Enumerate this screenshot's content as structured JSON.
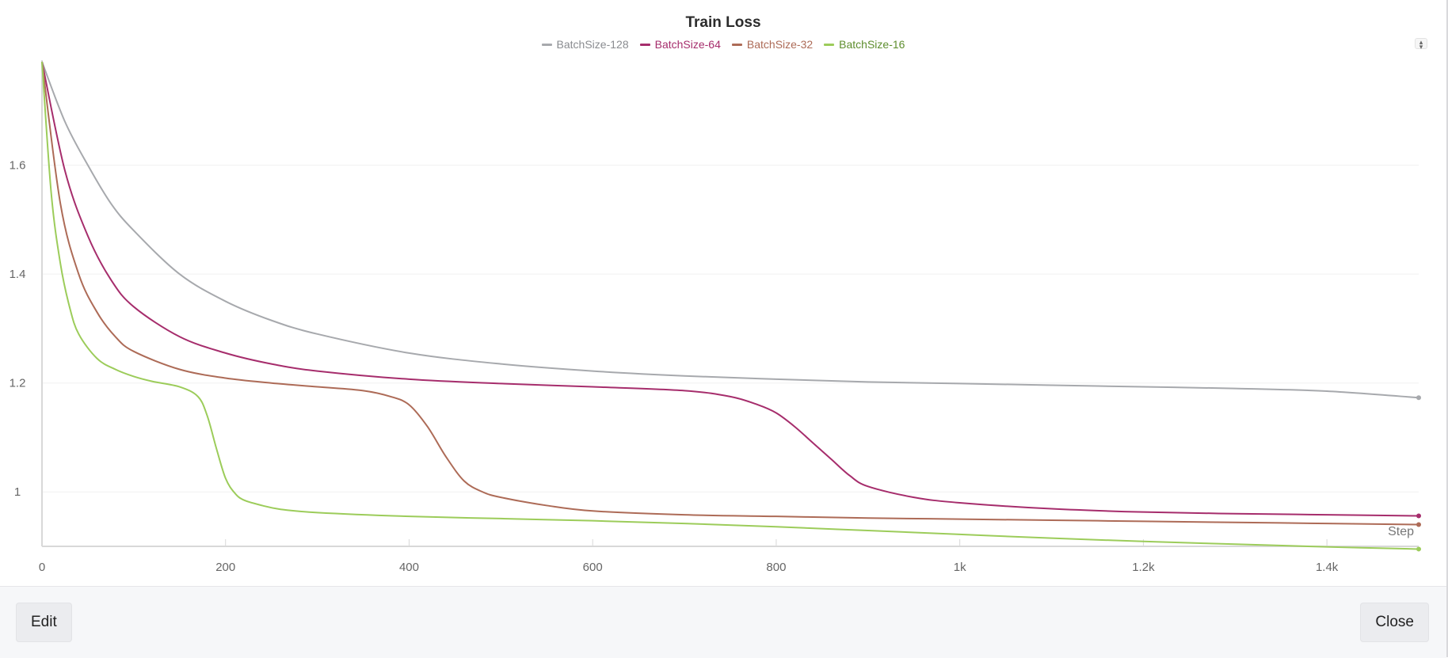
{
  "chart_data": {
    "type": "line",
    "title": "Train Loss",
    "xlabel": "Step",
    "ylabel": "",
    "xlim": [
      0,
      1500
    ],
    "ylim": [
      0.9,
      1.79
    ],
    "x_ticks": [
      0,
      200,
      400,
      600,
      800,
      1000,
      1200,
      1400
    ],
    "x_tick_labels": [
      "0",
      "200",
      "400",
      "600",
      "800",
      "1k",
      "1.2k",
      "1.4k"
    ],
    "y_ticks": [
      1,
      1.2,
      1.4,
      1.6
    ],
    "y_tick_labels": [
      "1",
      "1.2",
      "1.4",
      "1.6"
    ],
    "grid": true,
    "legend_position": "top-center",
    "series": [
      {
        "name": "BatchSize-128",
        "color": "#a7a9ad",
        "label_color": "#8a8c90",
        "x": [
          0,
          25,
          50,
          75,
          100,
          150,
          200,
          250,
          300,
          400,
          500,
          600,
          700,
          800,
          900,
          1000,
          1100,
          1200,
          1300,
          1400,
          1500
        ],
        "y": [
          1.79,
          1.68,
          1.6,
          1.53,
          1.48,
          1.4,
          1.35,
          1.315,
          1.29,
          1.255,
          1.235,
          1.222,
          1.213,
          1.207,
          1.202,
          1.199,
          1.196,
          1.193,
          1.19,
          1.185,
          1.173
        ]
      },
      {
        "name": "BatchSize-64",
        "color": "#a62d6c",
        "label_color": "#a62d6c",
        "x": [
          0,
          25,
          50,
          75,
          100,
          150,
          200,
          250,
          300,
          400,
          500,
          600,
          700,
          750,
          780,
          800,
          820,
          840,
          860,
          880,
          900,
          950,
          1000,
          1100,
          1200,
          1300,
          1400,
          1500
        ],
        "y": [
          1.79,
          1.59,
          1.47,
          1.39,
          1.34,
          1.285,
          1.255,
          1.235,
          1.222,
          1.207,
          1.199,
          1.193,
          1.186,
          1.175,
          1.16,
          1.145,
          1.12,
          1.09,
          1.06,
          1.03,
          1.01,
          0.99,
          0.98,
          0.969,
          0.963,
          0.96,
          0.958,
          0.956
        ]
      },
      {
        "name": "BatchSize-32",
        "color": "#ad6b57",
        "label_color": "#ad6b57",
        "x": [
          0,
          20,
          40,
          60,
          80,
          100,
          150,
          200,
          250,
          300,
          350,
          380,
          400,
          420,
          440,
          460,
          480,
          500,
          550,
          600,
          700,
          800,
          900,
          1000,
          1100,
          1200,
          1300,
          1400,
          1500
        ],
        "y": [
          1.79,
          1.53,
          1.4,
          1.33,
          1.285,
          1.258,
          1.225,
          1.209,
          1.2,
          1.193,
          1.186,
          1.175,
          1.16,
          1.12,
          1.065,
          1.02,
          1.0,
          0.99,
          0.975,
          0.965,
          0.958,
          0.955,
          0.952,
          0.95,
          0.948,
          0.946,
          0.944,
          0.942,
          0.94
        ]
      },
      {
        "name": "BatchSize-16",
        "color": "#9ccc5a",
        "label_color": "#5e8e2e",
        "x": [
          0,
          10,
          20,
          30,
          40,
          60,
          80,
          100,
          120,
          150,
          170,
          180,
          190,
          200,
          210,
          220,
          240,
          260,
          300,
          400,
          500,
          600,
          700,
          800,
          900,
          1000,
          1100,
          1200,
          1300,
          1400,
          1500
        ],
        "y": [
          1.79,
          1.55,
          1.42,
          1.34,
          1.29,
          1.245,
          1.225,
          1.212,
          1.203,
          1.193,
          1.175,
          1.14,
          1.08,
          1.025,
          0.998,
          0.985,
          0.975,
          0.968,
          0.962,
          0.955,
          0.951,
          0.947,
          0.942,
          0.936,
          0.929,
          0.922,
          0.915,
          0.909,
          0.904,
          0.899,
          0.895
        ]
      }
    ]
  },
  "toolbar": {
    "edit_label": "Edit",
    "close_label": "Close"
  }
}
